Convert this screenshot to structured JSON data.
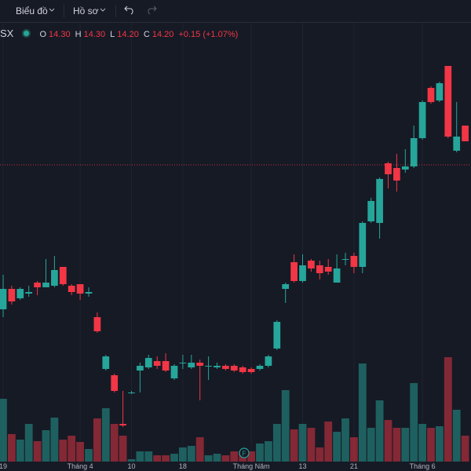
{
  "toolbar": {
    "chart_menu": "Biểu đồ",
    "profile_menu": "Hồ sơ"
  },
  "legend": {
    "symbol": "SX",
    "o_label": "O",
    "o": "14.30",
    "h_label": "H",
    "h": "14.30",
    "l_label": "L",
    "l": "14.20",
    "c_label": "C",
    "c": "14.20",
    "change": "+0.15 (+1.07%)"
  },
  "event_marker": "F",
  "chart_data": {
    "type": "candlestick",
    "categories": [
      "19",
      null,
      null,
      null,
      null,
      null,
      null,
      null,
      null,
      "Tháng 4",
      null,
      null,
      null,
      null,
      null,
      "10",
      null,
      null,
      null,
      null,
      null,
      "18",
      null,
      null,
      null,
      null,
      null,
      null,
      null,
      "Tháng Năm",
      null,
      null,
      null,
      null,
      null,
      "13",
      null,
      null,
      null,
      null,
      null,
      "21",
      null,
      null,
      null,
      null,
      null,
      null,
      null,
      "Tháng 6",
      null,
      null,
      null,
      null,
      null
    ],
    "open": [
      13.13,
      13.26,
      13.2,
      13.23,
      13.3,
      13.27,
      13.28,
      13.4,
      13.28,
      13.29,
      13.23,
      13.08,
      12.75,
      12.71,
      12.4,
      12.6,
      12.74,
      12.76,
      12.8,
      12.8,
      12.69,
      12.79,
      12.76,
      12.79,
      12.77,
      12.76,
      12.77,
      12.77,
      12.76,
      12.75,
      12.75,
      12.77,
      12.88,
      13.26,
      13.43,
      13.31,
      13.44,
      13.41,
      13.4,
      13.3,
      13.45,
      13.47,
      13.4,
      13.69,
      13.68,
      14.06,
      14.03,
      14.02,
      14.04,
      14.22,
      14.54,
      14.46,
      14.68,
      14.14,
      14.3
    ],
    "high": [
      13.35,
      13.28,
      13.27,
      13.28,
      13.31,
      13.45,
      13.47,
      13.4,
      13.29,
      13.29,
      13.27,
      13.11,
      12.84,
      12.72,
      12.61,
      12.61,
      12.79,
      12.84,
      12.83,
      12.85,
      12.78,
      12.84,
      12.84,
      12.81,
      12.83,
      12.79,
      12.78,
      12.78,
      12.77,
      12.76,
      12.78,
      12.84,
      13.06,
      13.3,
      13.48,
      13.48,
      13.45,
      13.44,
      13.45,
      13.48,
      13.49,
      13.49,
      13.69,
      13.84,
      13.97,
      14.07,
      14.12,
      14.15,
      14.3,
      14.46,
      14.55,
      14.58,
      14.68,
      14.45,
      14.3
    ],
    "low": [
      13.08,
      13.16,
      13.19,
      13.21,
      13.22,
      13.27,
      13.27,
      13.28,
      13.22,
      13.19,
      13.21,
      12.98,
      12.74,
      12.6,
      12.38,
      12.59,
      12.6,
      12.75,
      12.75,
      12.73,
      12.68,
      12.75,
      12.75,
      12.55,
      12.68,
      12.75,
      12.74,
      12.73,
      12.72,
      12.72,
      12.74,
      12.76,
      12.87,
      13.17,
      13.3,
      13.3,
      13.37,
      13.32,
      13.35,
      13.3,
      13.41,
      13.36,
      13.36,
      13.68,
      13.58,
      13.9,
      13.88,
      14.0,
      14.03,
      14.21,
      14.44,
      14.45,
      14.22,
      14.13,
      14.2
    ],
    "close": [
      13.26,
      13.18,
      13.26,
      13.24,
      13.27,
      13.3,
      13.38,
      13.29,
      13.24,
      13.23,
      13.24,
      12.99,
      12.83,
      12.61,
      12.39,
      12.6,
      12.77,
      12.82,
      12.77,
      12.74,
      12.77,
      12.79,
      12.79,
      12.77,
      12.77,
      12.77,
      12.75,
      12.74,
      12.73,
      12.73,
      12.77,
      12.83,
      13.05,
      13.29,
      13.31,
      13.41,
      13.39,
      13.36,
      13.37,
      13.39,
      13.45,
      13.4,
      13.68,
      13.82,
      13.96,
      13.99,
      13.95,
      14.04,
      14.22,
      14.45,
      14.45,
      14.57,
      14.23,
      14.23,
      14.2
    ],
    "volume": [
      80,
      35,
      28,
      48,
      26,
      40,
      56,
      28,
      33,
      25,
      16,
      55,
      68,
      48,
      33,
      3,
      13,
      13,
      8,
      8,
      10,
      18,
      20,
      31,
      8,
      10,
      8,
      13,
      13,
      13,
      23,
      26,
      48,
      91,
      41,
      48,
      43,
      18,
      51,
      38,
      55,
      31,
      125,
      43,
      78,
      53,
      43,
      43,
      100,
      48,
      43,
      45,
      133,
      66,
      33
    ],
    "ylim": [
      12.15,
      14.84
    ],
    "volume_ylim": [
      0,
      400
    ],
    "ref_line": 14.05,
    "up_color": "#26a69a",
    "down_color": "#f23645",
    "grid": true
  }
}
